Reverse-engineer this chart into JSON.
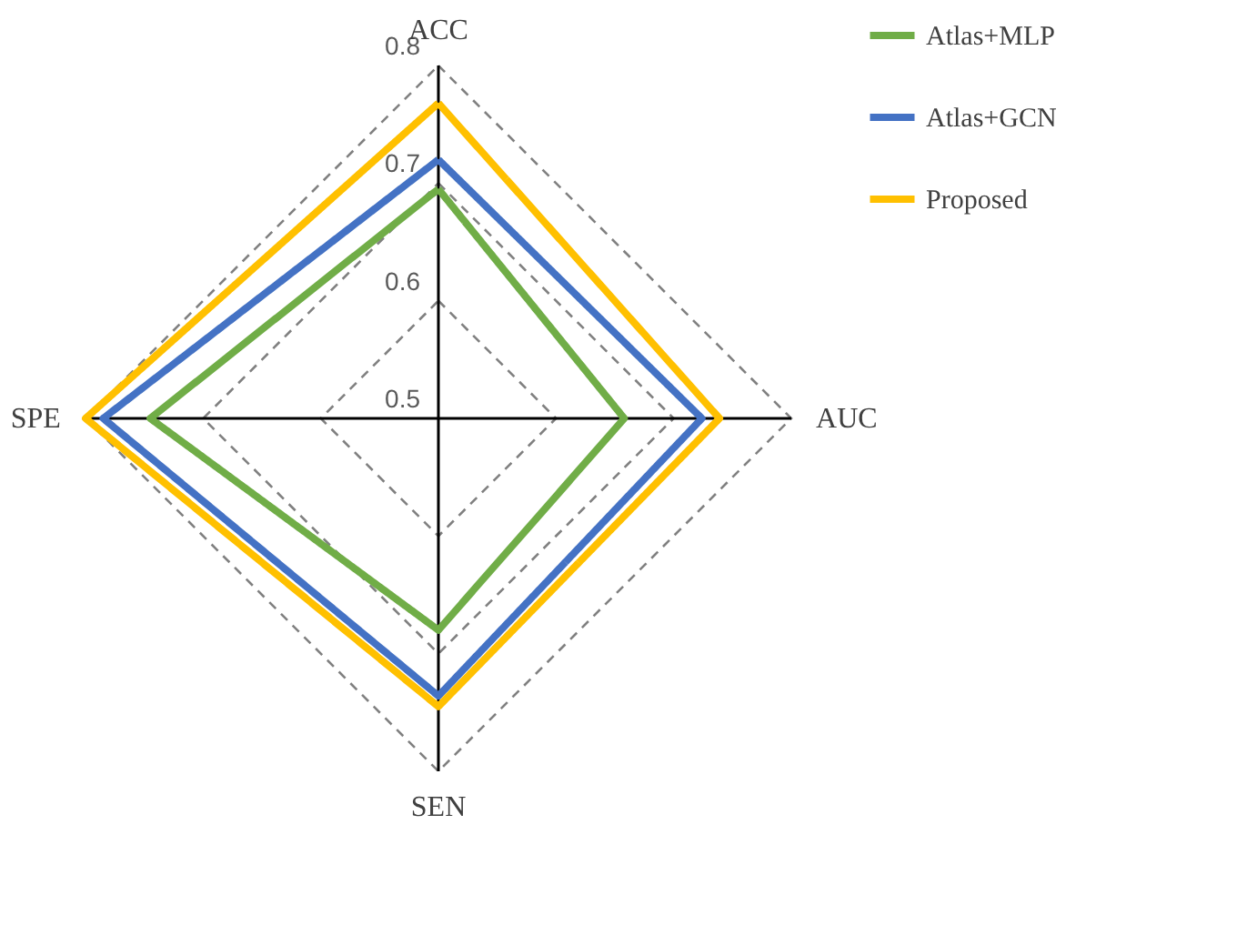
{
  "chart_data": {
    "type": "radar",
    "categories": [
      "ACC",
      "AUC",
      "SEN",
      "SPE"
    ],
    "series": [
      {
        "name": "Atlas+MLP",
        "color": "#70ad47",
        "values": [
          0.695,
          0.658,
          0.68,
          0.745
        ]
      },
      {
        "name": "Atlas+GCN",
        "color": "#4472c4",
        "values": [
          0.72,
          0.724,
          0.736,
          0.785
        ]
      },
      {
        "name": "Proposed",
        "color": "#ffc000",
        "values": [
          0.768,
          0.739,
          0.745,
          0.8
        ]
      }
    ],
    "ylim": [
      0.5,
      0.8
    ],
    "yticks": [
      0.5,
      0.6,
      0.7,
      0.8
    ],
    "grid": true,
    "legend": "top right",
    "line_style": "solid"
  }
}
